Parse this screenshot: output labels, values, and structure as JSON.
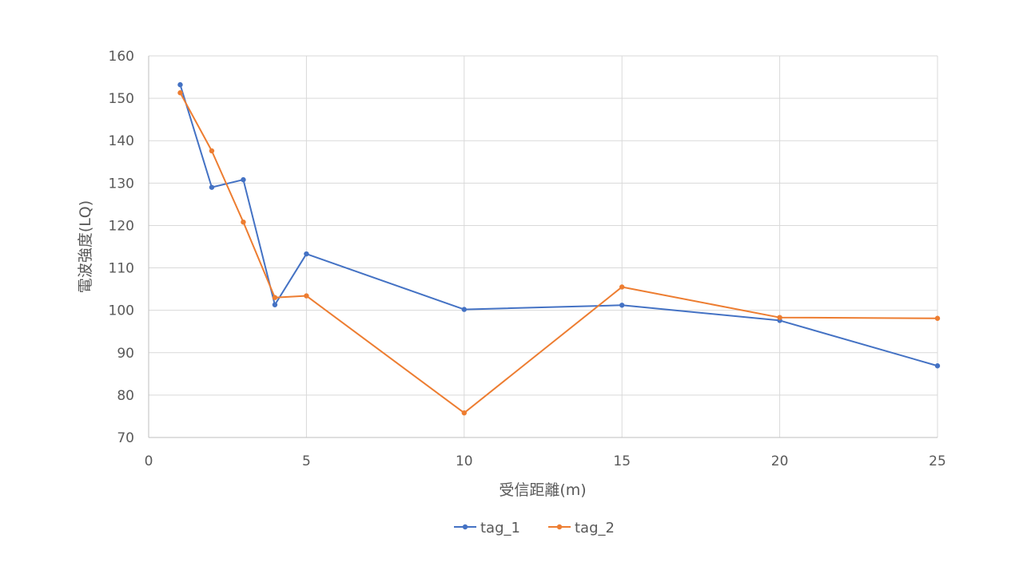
{
  "chart_data": {
    "type": "line",
    "title": "",
    "xlabel": "受信距離(m)",
    "ylabel": "電波強度(LQ)",
    "xlim": [
      0,
      25
    ],
    "ylim": [
      70,
      160
    ],
    "x_ticks": [
      0,
      5,
      10,
      15,
      20,
      25
    ],
    "y_ticks": [
      70,
      80,
      90,
      100,
      110,
      120,
      130,
      140,
      150,
      160
    ],
    "grid": true,
    "legend_position": "bottom",
    "series": [
      {
        "name": "tag_1",
        "color": "#4472C4",
        "x": [
          1,
          2,
          3,
          4,
          5,
          10,
          15,
          20,
          25
        ],
        "y": [
          153.2,
          129.0,
          130.8,
          101.3,
          113.3,
          100.2,
          101.2,
          97.6,
          86.9
        ]
      },
      {
        "name": "tag_2",
        "color": "#ED7D31",
        "x": [
          1,
          2,
          3,
          4,
          5,
          10,
          15,
          20,
          25
        ],
        "y": [
          151.3,
          137.6,
          120.8,
          103.0,
          103.4,
          75.8,
          105.5,
          98.3,
          98.1
        ]
      }
    ]
  }
}
